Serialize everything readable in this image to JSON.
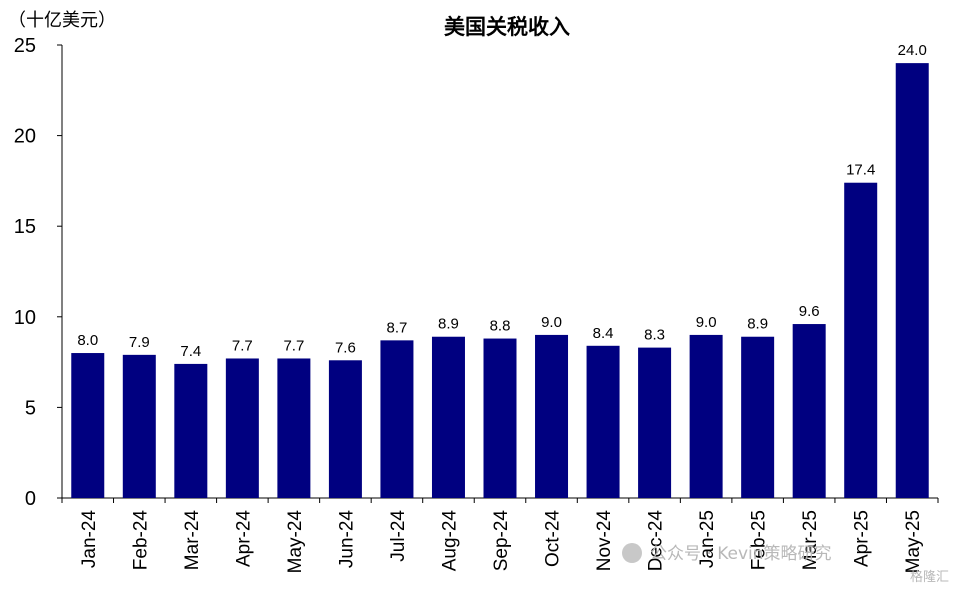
{
  "chart_data": {
    "type": "bar",
    "title": "美国关税收入",
    "unit_label": "（十亿美元）",
    "categories": [
      "Jan-24",
      "Feb-24",
      "Mar-24",
      "Apr-24",
      "May-24",
      "Jun-24",
      "Jul-24",
      "Aug-24",
      "Sep-24",
      "Oct-24",
      "Nov-24",
      "Dec-24",
      "Jan-25",
      "Feb-25",
      "Mar-25",
      "Apr-25",
      "May-25"
    ],
    "values": [
      8.0,
      7.9,
      7.4,
      7.7,
      7.7,
      7.6,
      8.7,
      8.9,
      8.8,
      9.0,
      8.4,
      8.3,
      9.0,
      8.9,
      9.6,
      17.4,
      24.0
    ],
    "data_labels": [
      "8.0",
      "7.9",
      "7.4",
      "7.7",
      "7.7",
      "7.6",
      "8.7",
      "8.9",
      "8.8",
      "9.0",
      "8.4",
      "8.3",
      "9.0",
      "8.9",
      "9.6",
      "17.4",
      "24.0"
    ],
    "ylim": [
      0,
      25
    ],
    "yticks": [
      "0",
      "5",
      "10",
      "15",
      "20",
      "25"
    ],
    "grid": false,
    "bar_color": "#000080"
  },
  "watermark": {
    "text": "公众号 · Kevin策略研究",
    "brand": "格隆汇"
  }
}
